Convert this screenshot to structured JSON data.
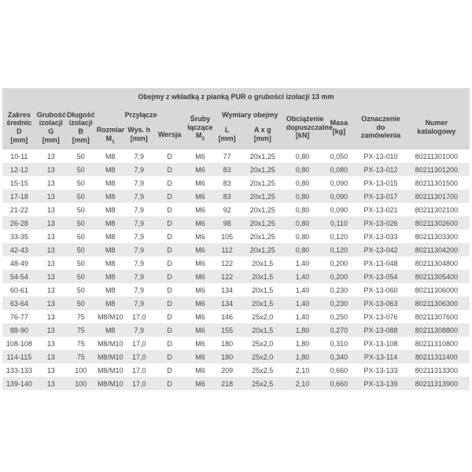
{
  "table": {
    "title": "Obejmy z wkładką z pianką PUR o grubości izolacji 13 mm",
    "groups": {
      "przylacze": "Przyłącze",
      "wymiary": "Wymiary obejmy"
    },
    "columns": [
      {
        "name": "zakres-srednic",
        "width": 7.2,
        "lines": [
          "Zakres",
          "średnic D",
          "[mm]"
        ]
      },
      {
        "name": "grubosc-izolacji",
        "width": 6.4,
        "lines": [
          "Grubość",
          "izolacji",
          "G",
          "[mm]"
        ]
      },
      {
        "name": "dlugosc-izolacji",
        "width": 6.4,
        "lines": [
          "Długość",
          "izolacji",
          "B",
          "[mm]"
        ]
      },
      {
        "name": "rozmiar-m1",
        "width": 6.2,
        "group": "przylacze",
        "lines": [
          "Rozmiar",
          "M_1"
        ]
      },
      {
        "name": "wys-h",
        "width": 6.1,
        "group": "przylacze",
        "lines": [
          "Wys. h",
          "[mm]"
        ]
      },
      {
        "name": "wersja",
        "width": 7.0,
        "group": "przylacze",
        "lines": [
          "Wersja"
        ]
      },
      {
        "name": "sruby-m2",
        "width": 6.1,
        "lines": [
          "Śruby",
          "łączące",
          "M_2"
        ]
      },
      {
        "name": "l-mm",
        "width": 5.4,
        "group": "wymiary",
        "lines": [
          "L",
          "[mm]"
        ]
      },
      {
        "name": "a-x-g",
        "width": 9.8,
        "group": "wymiary",
        "lines": [
          "A x g",
          "[mm]"
        ]
      },
      {
        "name": "obciazenie",
        "width": 7.3,
        "lines": [
          "Obciążenie",
          "dopuszczalne",
          "[kN]"
        ]
      },
      {
        "name": "masa",
        "width": 8.3,
        "lines": [
          "Masa",
          "[kg]"
        ]
      },
      {
        "name": "oznaczenie",
        "width": 9.6,
        "lines": [
          "Oznaczenie",
          "do zamówienia"
        ]
      },
      {
        "name": "numer-katalogowy",
        "width": 14.2,
        "lines": [
          "Numer",
          "katalogowy"
        ]
      }
    ],
    "rows": [
      [
        "10-11",
        "13",
        "50",
        "M8",
        "7,9",
        "D",
        "M6",
        "77",
        "20x1,25",
        "0,80",
        "0,050",
        "PX-13-010",
        "80211301000"
      ],
      [
        "12-12",
        "13",
        "50",
        "M8",
        "7,9",
        "D",
        "M6",
        "83",
        "20x1,25",
        "0,80",
        "0,080",
        "PX-13-012",
        "80211301200"
      ],
      [
        "15-15",
        "13",
        "50",
        "M8",
        "7,9",
        "D",
        "M6",
        "83",
        "20x1,25",
        "0,80",
        "0,090",
        "PX-13-015",
        "80211301500"
      ],
      [
        "17-18",
        "13",
        "50",
        "M8",
        "7,9",
        "D",
        "M6",
        "83",
        "20x1,25",
        "0,80",
        "0,090",
        "PX-13-017",
        "80211301700"
      ],
      [
        "21-22",
        "13",
        "50",
        "M8",
        "7,9",
        "D",
        "M6",
        "92",
        "20x1,25",
        "0,80",
        "0,090",
        "PX-13-021",
        "80211302100"
      ],
      [
        "26-28",
        "13",
        "50",
        "M8",
        "7,9",
        "D",
        "M6",
        "98",
        "20x1,25",
        "0,80",
        "0,110",
        "PX-13-026",
        "80211302600"
      ],
      [
        "33-35",
        "13",
        "50",
        "M8",
        "7,9",
        "D",
        "M6",
        "105",
        "20x1,25",
        "0,80",
        "0,120",
        "PX-13-033",
        "80211303300"
      ],
      [
        "42-43",
        "13",
        "50",
        "M8",
        "7,9",
        "D",
        "M6",
        "112",
        "20x1,25",
        "0,80",
        "0,120",
        "PX-13-042",
        "80211304200"
      ],
      [
        "48-49",
        "13",
        "50",
        "M8",
        "7,9",
        "D",
        "M6",
        "122",
        "20x1,5",
        "1,40",
        "0,200",
        "PX-13-048",
        "80211304800"
      ],
      [
        "54-54",
        "13",
        "50",
        "M8",
        "7,9",
        "D",
        "M6",
        "122",
        "20x1,5",
        "1,40",
        "0,200",
        "PX-13-054",
        "80211305400"
      ],
      [
        "60-61",
        "13",
        "50",
        "M8",
        "7,9",
        "D",
        "M6",
        "134",
        "20x1,5",
        "1,40",
        "0,230",
        "PX-13-060",
        "80211306000"
      ],
      [
        "63-64",
        "13",
        "50",
        "M8",
        "7,9",
        "D",
        "M6",
        "134",
        "20x1,5",
        "1,40",
        "0,230",
        "PX-13-063",
        "80211306300"
      ],
      [
        "76-77",
        "13",
        "75",
        "M8/M10",
        "17,0",
        "D",
        "M6",
        "146",
        "25x2,0",
        "1,40",
        "0,250",
        "PX-13-076",
        "80211307600"
      ],
      [
        "88-90",
        "13",
        "75",
        "M8",
        "7,9",
        "D",
        "M6",
        "155",
        "20x1,5",
        "1,80",
        "0,270",
        "PX-13-088",
        "80211308800"
      ],
      [
        "108-108",
        "13",
        "75",
        "M8/M10",
        "17,0",
        "D",
        "M6",
        "180",
        "25x2,0",
        "1,80",
        "0,310",
        "PX-13-108",
        "80211310800"
      ],
      [
        "114-115",
        "13",
        "75",
        "M8/M10",
        "17,0",
        "D",
        "M6",
        "180",
        "25x2,0",
        "1,80",
        "0,340",
        "PX-13-114",
        "80211311400"
      ],
      [
        "133-133",
        "13",
        "100",
        "M8/M10",
        "17,0",
        "D",
        "M6",
        "209",
        "25x2,5",
        "2,10",
        "0,660",
        "PX-13-133",
        "80211313300"
      ],
      [
        "139-140",
        "13",
        "100",
        "M8/M10",
        "17,0",
        "D",
        "M6",
        "218",
        "25x2,5",
        "2,10",
        "0,660",
        "PX-13-139",
        "80211313900"
      ]
    ],
    "colors": {
      "header_bg": "#d8d8d8",
      "stripe_bg": "#e9e9e9",
      "text": "#474747"
    }
  }
}
